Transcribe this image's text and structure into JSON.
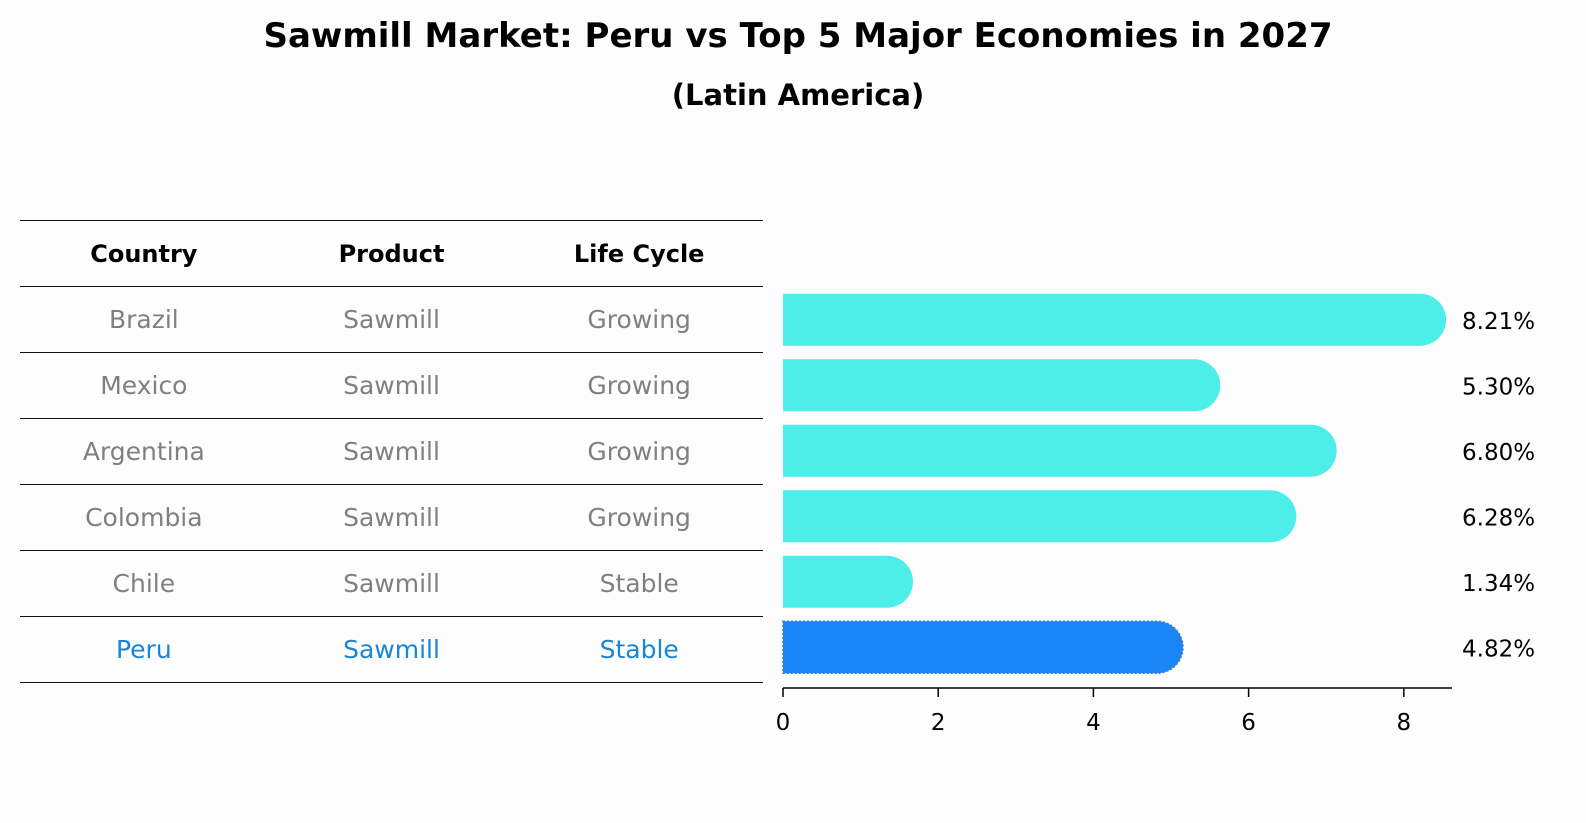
{
  "title": "Sawmill Market: Peru vs Top 5 Major Economies in 2027",
  "subtitle": "(Latin America)",
  "table": {
    "headers": [
      "Country",
      "Product",
      "Life Cycle"
    ],
    "rows": [
      {
        "country": "Brazil",
        "product": "Sawmill",
        "life_cycle": "Growing"
      },
      {
        "country": "Mexico",
        "product": "Sawmill",
        "life_cycle": "Growing"
      },
      {
        "country": "Argentina",
        "product": "Sawmill",
        "life_cycle": "Growing"
      },
      {
        "country": "Colombia",
        "product": "Sawmill",
        "life_cycle": "Growing"
      },
      {
        "country": "Chile",
        "product": "Sawmill",
        "life_cycle": "Stable"
      },
      {
        "country": "Peru",
        "product": "Sawmill",
        "life_cycle": "Stable"
      }
    ]
  },
  "chart_data": {
    "type": "bar",
    "orientation": "horizontal",
    "categories": [
      "Brazil",
      "Mexico",
      "Argentina",
      "Colombia",
      "Chile",
      "Peru"
    ],
    "values": [
      8.21,
      5.3,
      6.8,
      6.28,
      1.34,
      4.82
    ],
    "value_labels": [
      "8.21%",
      "5.30%",
      "6.80%",
      "6.28%",
      "1.34%",
      "4.82%"
    ],
    "highlight": "Peru",
    "xlim": [
      0,
      8.6
    ],
    "xticks": [
      0,
      2,
      4,
      6,
      8
    ],
    "xlabel": "",
    "ylabel": "",
    "grid": false,
    "colors": {
      "default": "#4dede9",
      "highlight": "#1a85f5"
    }
  }
}
